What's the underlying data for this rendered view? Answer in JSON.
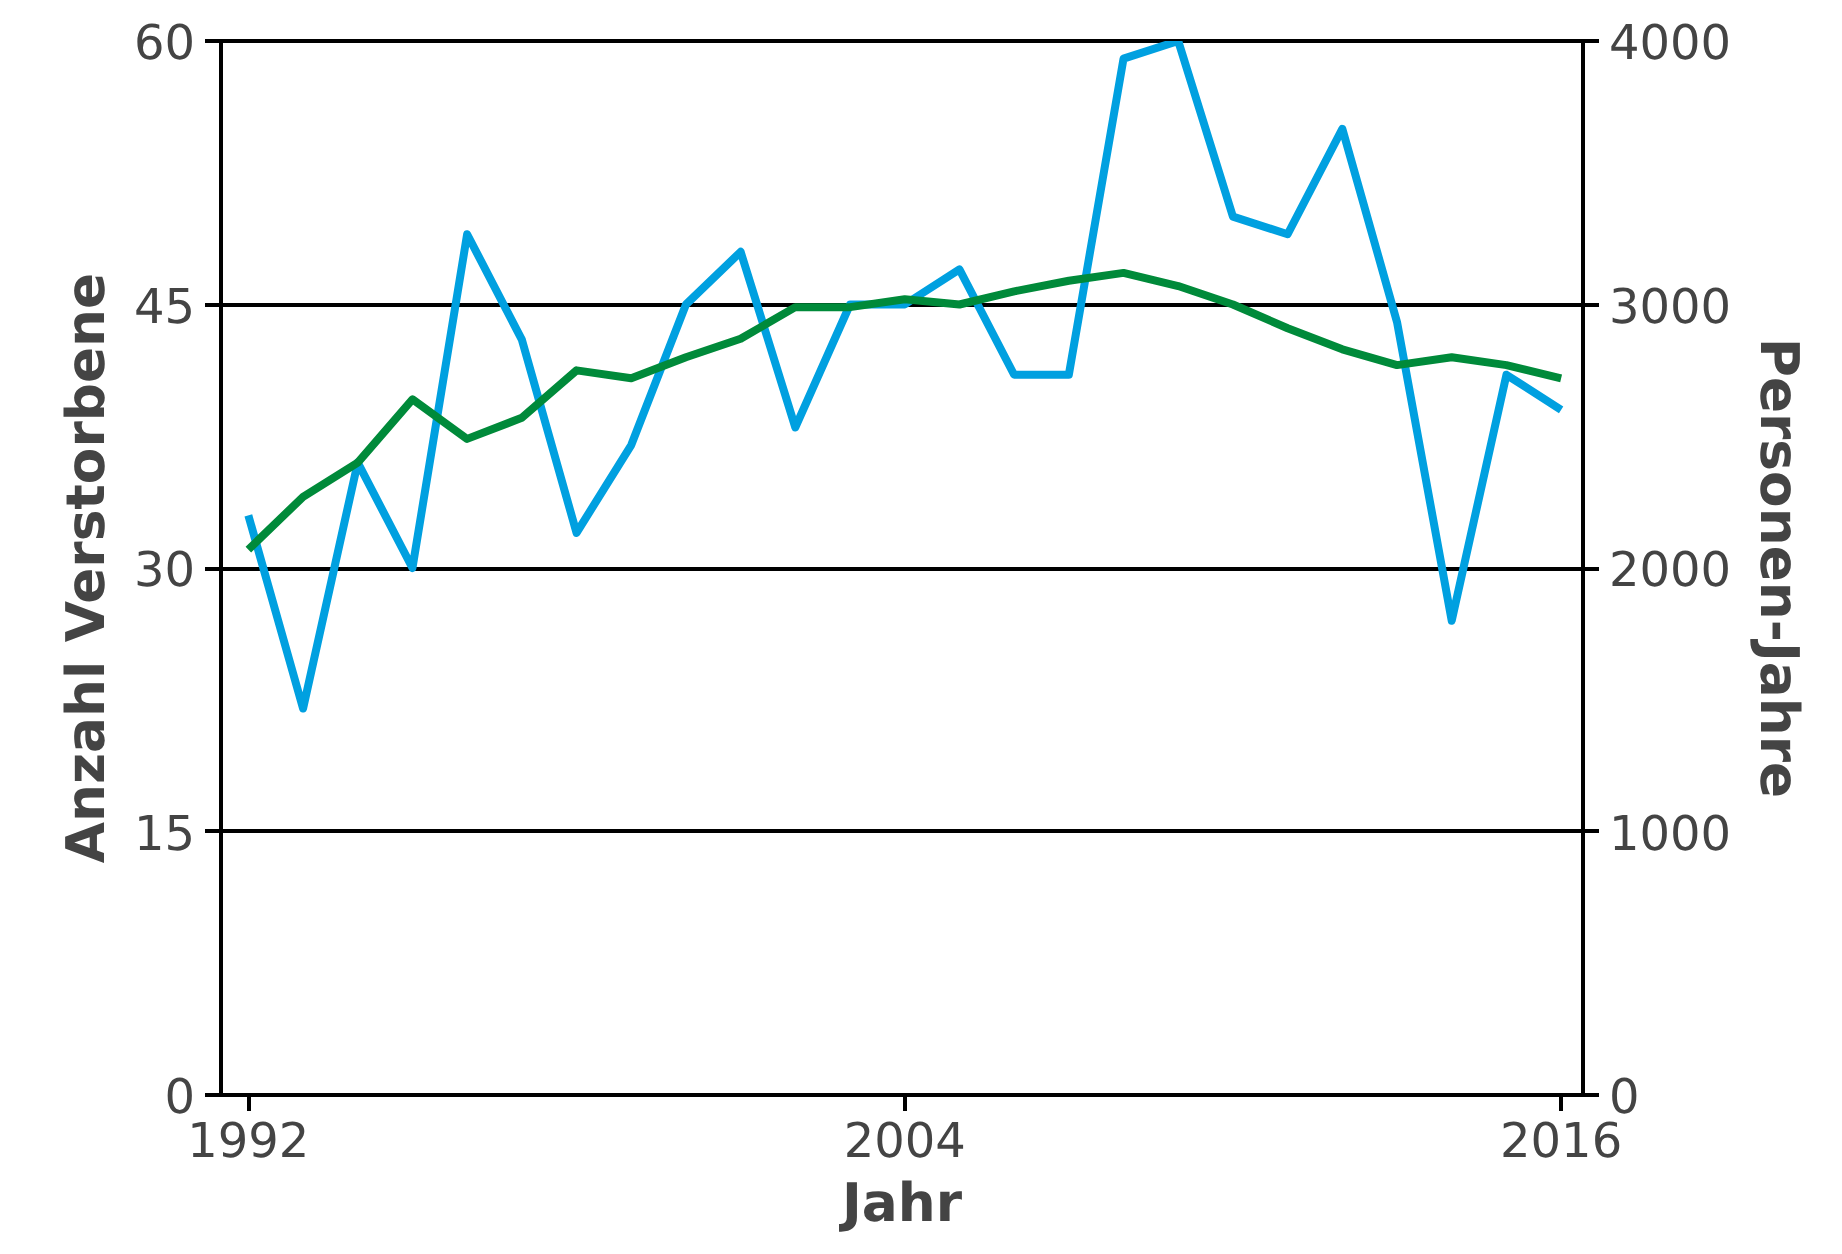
{
  "chart_data": {
    "type": "line",
    "xlabel": "Jahr",
    "ylabel": "Anzahl Verstorbene",
    "y2label": "Personen-Jahre",
    "x": [
      1992,
      1993,
      1994,
      1995,
      1996,
      1997,
      1998,
      1999,
      2000,
      2001,
      2002,
      2003,
      2004,
      2005,
      2006,
      2007,
      2008,
      2009,
      2010,
      2011,
      2012,
      2013,
      2014,
      2015,
      2016
    ],
    "series": [
      {
        "color": "#00a0e0",
        "values": [
          33,
          22,
          36,
          30,
          49,
          43,
          32,
          37,
          45,
          48,
          38,
          45,
          45,
          47,
          41,
          41,
          59,
          60,
          50,
          49,
          55,
          44,
          27,
          41,
          39
        ]
      },
      {
        "color": "#008a3a",
        "axis": "y2",
        "values": [
          2070,
          2270,
          2400,
          2640,
          2490,
          2570,
          2750,
          2720,
          2800,
          2870,
          2990,
          2990,
          3020,
          3000,
          3050,
          3090,
          3120,
          3070,
          3000,
          2910,
          2830,
          2770,
          2800,
          2770,
          2720
        ]
      }
    ],
    "xlim": [
      1991.5,
      2016.4
    ],
    "xticks": [
      1992,
      2004,
      2016
    ],
    "ylim": [
      0,
      60
    ],
    "yticks": [
      0,
      15,
      30,
      45,
      60
    ],
    "y2lim": [
      0,
      4000
    ],
    "y2ticks": [
      0,
      1000,
      2000,
      3000,
      4000
    ],
    "grid": "y",
    "marker": "none",
    "line_style": "solid"
  }
}
